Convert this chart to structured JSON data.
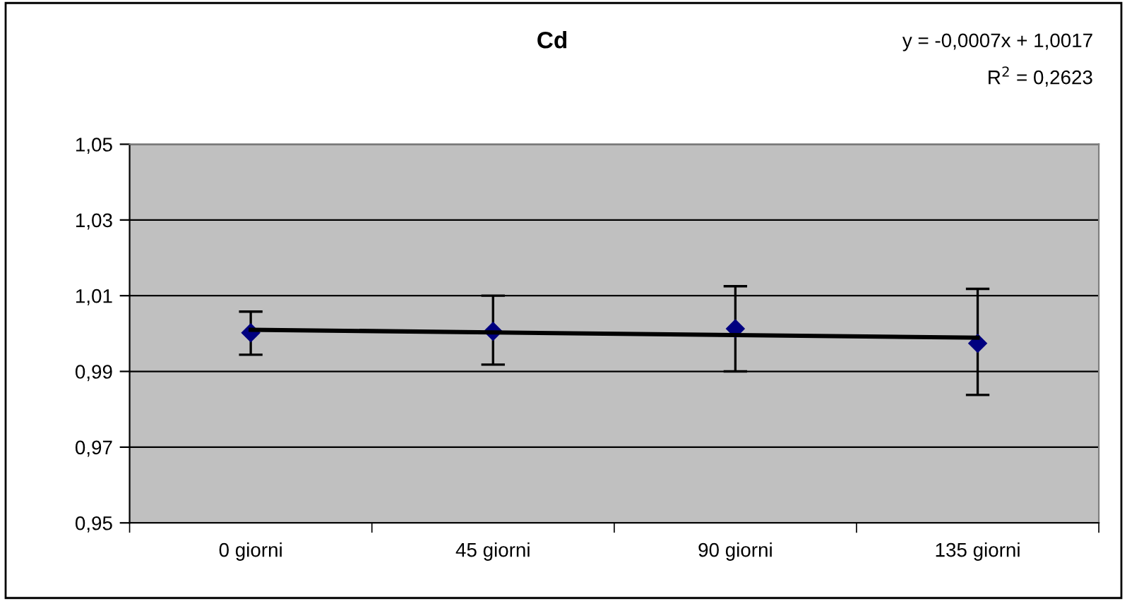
{
  "chart_data": {
    "type": "scatter",
    "title": "Cd",
    "categories": [
      "0 giorni",
      "45 giorni",
      "90 giorni",
      "135 giorni"
    ],
    "series": [
      {
        "color": "#000080",
        "marker": "diamond",
        "values": [
          1.0002,
          1.0006,
          1.0013,
          0.9974
        ],
        "errors": [
          [
            0.9944,
            1.0058
          ],
          [
            0.9918,
            1.01
          ],
          [
            0.99,
            1.0125
          ],
          [
            0.9838,
            1.0118
          ]
        ]
      },
      {
        "type": "line",
        "color": "#000000",
        "marker": "none",
        "line_style": "solid",
        "values": [
          1.001,
          1.0003,
          0.9996,
          0.9989
        ]
      }
    ],
    "ylim": [
      0.95,
      1.05
    ],
    "yticks": [
      {
        "value": 0.95,
        "label": "0,95"
      },
      {
        "value": 0.97,
        "label": "0,97"
      },
      {
        "value": 0.99,
        "label": "0,99"
      },
      {
        "value": 1.01,
        "label": "1,01"
      },
      {
        "value": 1.03,
        "label": "1,03"
      },
      {
        "value": 1.05,
        "label": "1,05"
      }
    ],
    "grid": "y",
    "legend": false,
    "annotations": [
      "y = -0,0007x + 1,0017",
      "R$^{2}$ = 0,2623"
    ]
  }
}
